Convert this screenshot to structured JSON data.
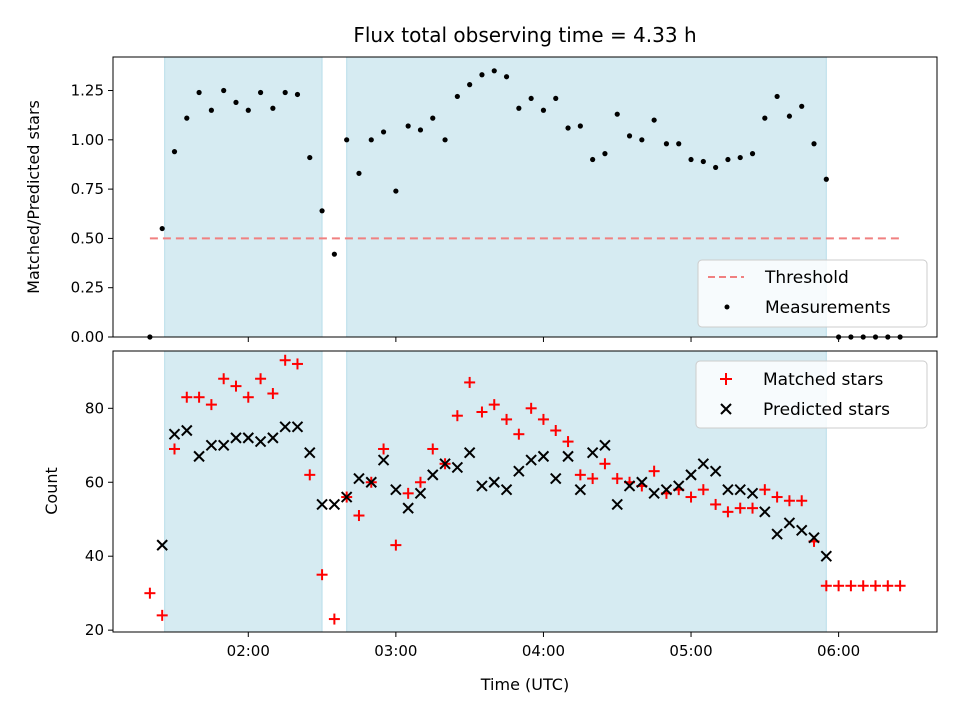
{
  "chart_data": [
    {
      "type": "scatter",
      "title": "Flux total observing time = 4.33 h",
      "xlabel": "",
      "ylabel": "Matched/Predicted stars",
      "ylim": [
        0,
        1.42
      ],
      "yticks": [
        "0.00",
        "0.25",
        "0.50",
        "0.75",
        "1.00",
        "1.25"
      ],
      "ytick_values": [
        0,
        0.25,
        0.5,
        0.75,
        1.0,
        1.25
      ],
      "xlim": [
        "01:05",
        "06:40"
      ],
      "threshold": {
        "name": "Threshold",
        "value": 0.5,
        "x_start": "01:20",
        "x_end": "06:25",
        "color": "#f08080"
      },
      "observing_windows": [
        {
          "start": "01:26",
          "end": "02:30"
        },
        {
          "start": "02:40",
          "end": "05:55"
        }
      ],
      "legend_position": "lower right",
      "series": [
        {
          "name": "Measurements",
          "color": "#000000",
          "x": [
            "01:20",
            "01:25",
            "01:30",
            "01:35",
            "01:40",
            "01:45",
            "01:50",
            "01:55",
            "02:00",
            "02:05",
            "02:10",
            "02:15",
            "02:20",
            "02:25",
            "02:30",
            "02:35",
            "02:40",
            "02:45",
            "02:50",
            "02:55",
            "03:00",
            "03:05",
            "03:10",
            "03:15",
            "03:20",
            "03:25",
            "03:30",
            "03:35",
            "03:40",
            "03:45",
            "03:50",
            "03:55",
            "04:00",
            "04:05",
            "04:10",
            "04:15",
            "04:20",
            "04:25",
            "04:30",
            "04:35",
            "04:40",
            "04:45",
            "04:50",
            "04:55",
            "05:00",
            "05:05",
            "05:10",
            "05:15",
            "05:20",
            "05:25",
            "05:30",
            "05:35",
            "05:40",
            "05:45",
            "05:50",
            "05:55",
            "06:00",
            "06:05",
            "06:10",
            "06:15",
            "06:20",
            "06:25"
          ],
          "y": [
            0.0,
            0.55,
            0.94,
            1.11,
            1.24,
            1.15,
            1.25,
            1.19,
            1.15,
            1.24,
            1.16,
            1.24,
            1.23,
            0.91,
            0.64,
            0.42,
            1.0,
            0.83,
            1.0,
            1.04,
            0.74,
            1.07,
            1.05,
            1.11,
            1.0,
            1.22,
            1.28,
            1.33,
            1.35,
            1.32,
            1.16,
            1.21,
            1.15,
            1.21,
            1.06,
            1.07,
            0.9,
            0.93,
            1.13,
            1.02,
            1.0,
            1.1,
            0.98,
            0.98,
            0.9,
            0.89,
            0.86,
            0.9,
            0.91,
            0.93,
            1.11,
            1.22,
            1.12,
            1.17,
            0.98,
            0.8,
            0.0,
            0.0,
            0.0,
            0.0,
            0.0,
            0.0
          ]
        }
      ]
    },
    {
      "type": "scatter",
      "xlabel": "Time (UTC)",
      "ylabel": "Count",
      "ylim": [
        19.5,
        95.5
      ],
      "yticks": [
        "20",
        "40",
        "60",
        "80"
      ],
      "ytick_values": [
        20,
        40,
        60,
        80
      ],
      "xlim": [
        "01:05",
        "06:40"
      ],
      "xticks": [
        "02:00",
        "03:00",
        "04:00",
        "05:00",
        "06:00"
      ],
      "observing_windows": [
        {
          "start": "01:26",
          "end": "02:30"
        },
        {
          "start": "02:40",
          "end": "05:55"
        }
      ],
      "legend_position": "upper right",
      "series": [
        {
          "name": "Matched stars",
          "marker": "plus",
          "color": "#ff0000",
          "x": [
            "01:20",
            "01:25",
            "01:30",
            "01:35",
            "01:40",
            "01:45",
            "01:50",
            "01:55",
            "02:00",
            "02:05",
            "02:10",
            "02:15",
            "02:20",
            "02:25",
            "02:30",
            "02:35",
            "02:40",
            "02:45",
            "02:50",
            "02:55",
            "03:00",
            "03:05",
            "03:10",
            "03:15",
            "03:20",
            "03:25",
            "03:30",
            "03:35",
            "03:40",
            "03:45",
            "03:50",
            "03:55",
            "04:00",
            "04:05",
            "04:10",
            "04:15",
            "04:20",
            "04:25",
            "04:30",
            "04:35",
            "04:40",
            "04:45",
            "04:50",
            "04:55",
            "05:00",
            "05:05",
            "05:10",
            "05:15",
            "05:20",
            "05:25",
            "05:30",
            "05:35",
            "05:40",
            "05:45",
            "05:50",
            "05:55",
            "06:00",
            "06:05",
            "06:10",
            "06:15",
            "06:20",
            "06:25"
          ],
          "y": [
            30,
            24,
            69,
            83,
            83,
            81,
            88,
            86,
            83,
            88,
            84,
            93,
            92,
            62,
            35,
            23,
            56,
            51,
            60,
            69,
            43,
            57,
            60,
            69,
            65,
            78,
            87,
            79,
            81,
            77,
            73,
            80,
            77,
            74,
            71,
            62,
            61,
            65,
            61,
            60,
            59,
            63,
            57,
            58,
            56,
            58,
            54,
            52,
            53,
            53,
            58,
            56,
            55,
            55,
            44,
            32,
            32,
            32,
            32,
            32,
            32,
            32
          ]
        },
        {
          "name": "Predicted stars",
          "marker": "x",
          "color": "#000000",
          "x": [
            "01:25",
            "01:30",
            "01:35",
            "01:40",
            "01:45",
            "01:50",
            "01:55",
            "02:00",
            "02:05",
            "02:10",
            "02:15",
            "02:20",
            "02:25",
            "02:30",
            "02:35",
            "02:40",
            "02:45",
            "02:50",
            "02:55",
            "03:00",
            "03:05",
            "03:10",
            "03:15",
            "03:20",
            "03:25",
            "03:30",
            "03:35",
            "03:40",
            "03:45",
            "03:50",
            "03:55",
            "04:00",
            "04:05",
            "04:10",
            "04:15",
            "04:20",
            "04:25",
            "04:30",
            "04:35",
            "04:40",
            "04:45",
            "04:50",
            "04:55",
            "05:00",
            "05:05",
            "05:10",
            "05:15",
            "05:20",
            "05:25",
            "05:30",
            "05:35",
            "05:40",
            "05:45",
            "05:50",
            "05:55"
          ],
          "y": [
            43,
            73,
            74,
            67,
            70,
            70,
            72,
            72,
            71,
            72,
            75,
            75,
            68,
            54,
            54,
            56,
            61,
            60,
            66,
            58,
            53,
            57,
            62,
            65,
            64,
            68,
            59,
            60,
            58,
            63,
            66,
            67,
            61,
            67,
            58,
            68,
            70,
            54,
            59,
            60,
            57,
            58,
            59,
            62,
            65,
            63,
            58,
            58,
            57,
            52,
            46,
            49,
            47,
            45,
            40
          ]
        }
      ]
    }
  ]
}
